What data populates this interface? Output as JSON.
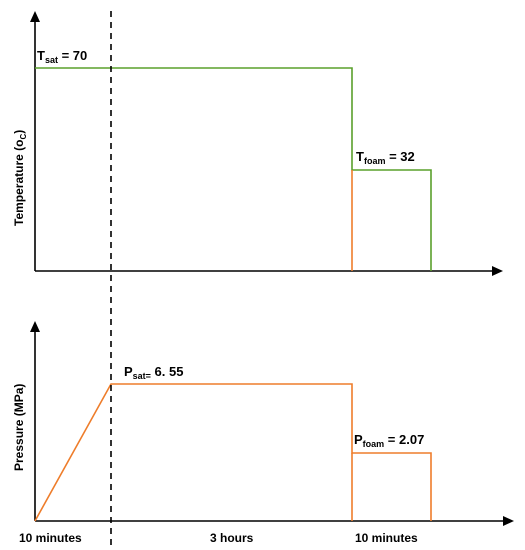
{
  "top_panel": {
    "ylabel": "Temperature (o",
    "ylabel_sub": "C",
    "ylabel_close": ")",
    "tsat_label": "T",
    "tsat_sub": "sat",
    "tsat_value": " = 70",
    "tfoam_label": "T",
    "tfoam_sub": "foam",
    "tfoam_value": " = 32"
  },
  "bottom_panel": {
    "ylabel": "Pressure (MPa)",
    "psat_label": "P",
    "psat_sub": "sat=",
    "psat_value": " 6. 55",
    "pfoam_label": "P",
    "pfoam_sub": "foam",
    "pfoam_value": " = 2.07"
  },
  "x_labels": {
    "stage1": "10 minutes",
    "stage2": "3 hours",
    "stage3": "10 minutes"
  },
  "colors": {
    "temperature_line": "#5aa02c",
    "pressure_line": "#ee7d2b",
    "axes": "#000000"
  }
}
